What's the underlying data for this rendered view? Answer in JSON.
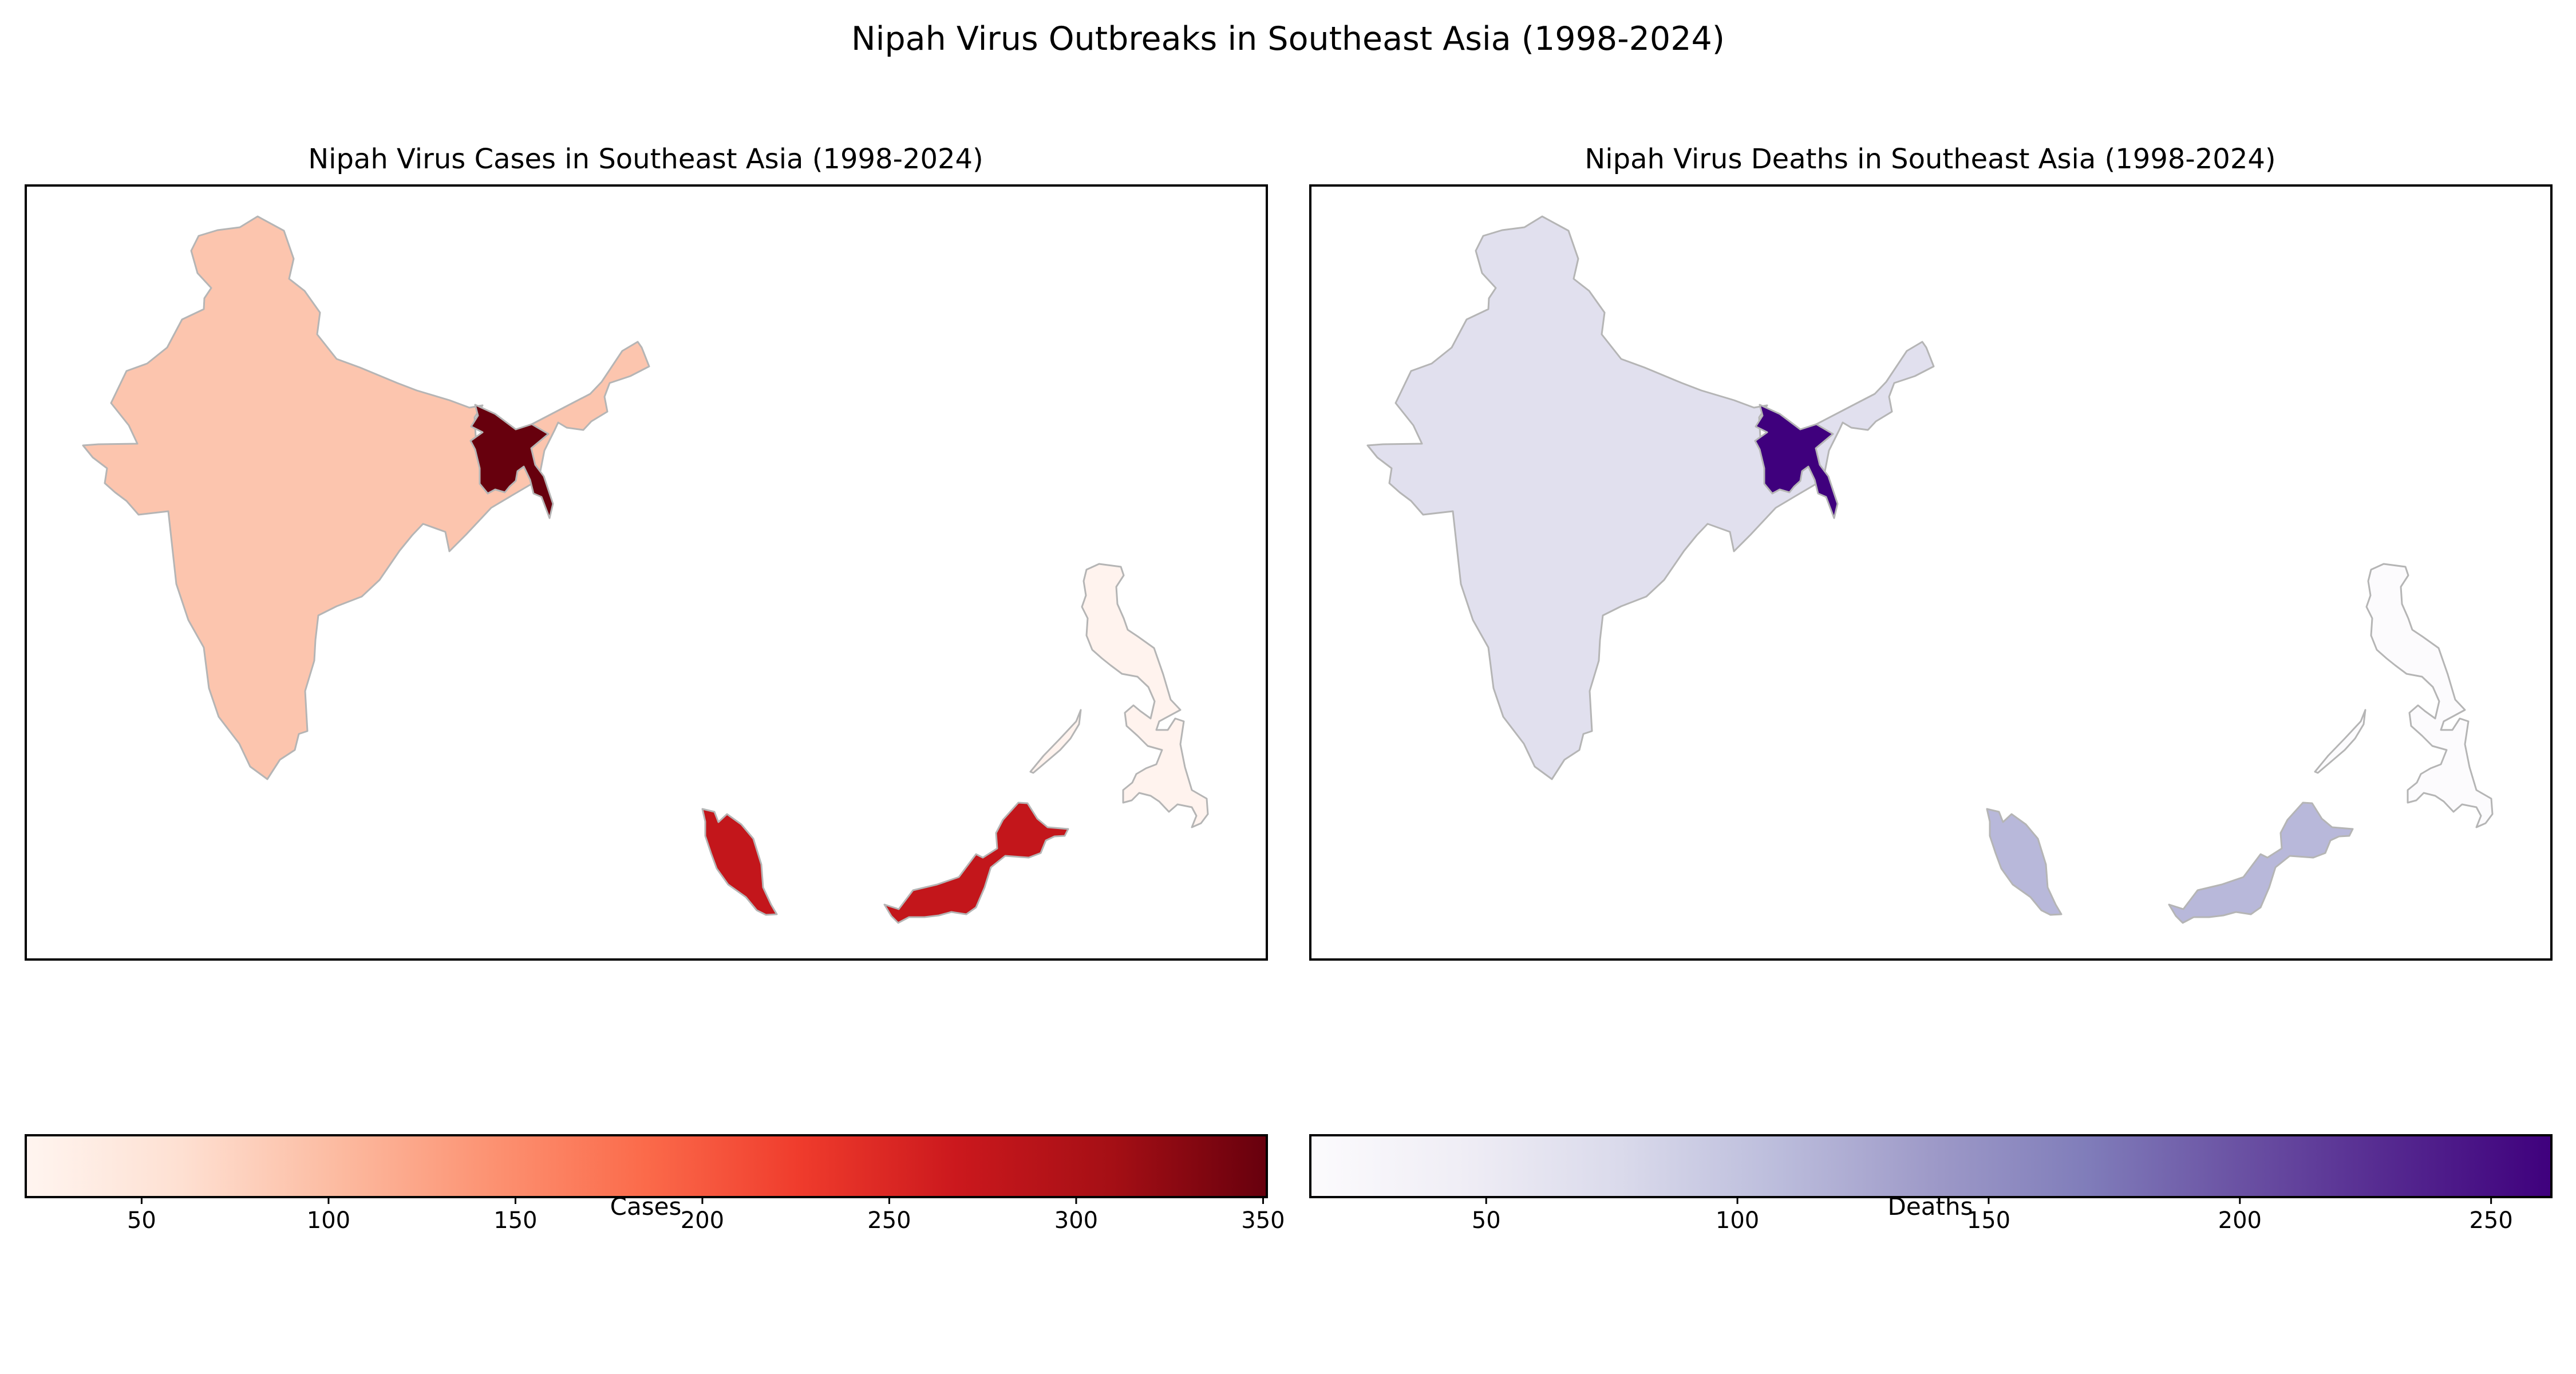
{
  "figure": {
    "suptitle": "Nipah Virus Outbreaks in Southeast Asia (1998-2024)"
  },
  "panels": [
    {
      "id": "cases",
      "title": "Nipah Virus Cases in Southeast Asia (1998-2024)",
      "colorbar": {
        "label": "Cases",
        "colormap": "Reds",
        "colors": [
          "#fff5f0",
          "#fee0d2",
          "#fcbba1",
          "#fc9272",
          "#fb6a4a",
          "#ef3b2c",
          "#cb181d",
          "#a50f15",
          "#67000d"
        ],
        "range": [
          19,
          351
        ],
        "ticks": [
          50,
          100,
          150,
          200,
          250,
          300,
          350
        ]
      },
      "regions": [
        {
          "name": "India",
          "value": 85,
          "color": "#fcc5ae"
        },
        {
          "name": "Bangladesh",
          "value": 350,
          "color": "#67000d"
        },
        {
          "name": "Malaysia",
          "value": 265,
          "color": "#c3161b"
        },
        {
          "name": "Philippines",
          "value": 19,
          "color": "#fff3ee"
        }
      ]
    },
    {
      "id": "deaths",
      "title": "Nipah Virus Deaths in Southeast Asia (1998-2024)",
      "colorbar": {
        "label": "Deaths",
        "colormap": "Purples",
        "colors": [
          "#fcfbfd",
          "#efedf5",
          "#dadaeb",
          "#bcbddc",
          "#9e9ac8",
          "#807dba",
          "#6a51a3",
          "#54278f",
          "#3f007d"
        ],
        "range": [
          15,
          262
        ],
        "ticks": [
          50,
          100,
          150,
          200,
          250
        ]
      },
      "regions": [
        {
          "name": "India",
          "value": 64,
          "color": "#e1e0ee"
        },
        {
          "name": "Bangladesh",
          "value": 260,
          "color": "#3f007d"
        },
        {
          "name": "Malaysia",
          "value": 106,
          "color": "#b8b8da"
        },
        {
          "name": "Philippines",
          "value": 15,
          "color": "#fcfbfd"
        }
      ]
    }
  ],
  "chart_data": [
    {
      "type": "choropleth",
      "title": "Nipah Virus Cases in Southeast Asia (1998-2024)",
      "colorbar_label": "Cases",
      "categories": [
        "India",
        "Bangladesh",
        "Malaysia",
        "Philippines"
      ],
      "values": [
        85,
        350,
        265,
        19
      ],
      "color_range": [
        19,
        351
      ]
    },
    {
      "type": "choropleth",
      "title": "Nipah Virus Deaths in Southeast Asia (1998-2024)",
      "colorbar_label": "Deaths",
      "categories": [
        "India",
        "Bangladesh",
        "Malaysia",
        "Philippines"
      ],
      "values": [
        64,
        260,
        106,
        15
      ],
      "color_range": [
        15,
        262
      ]
    }
  ]
}
